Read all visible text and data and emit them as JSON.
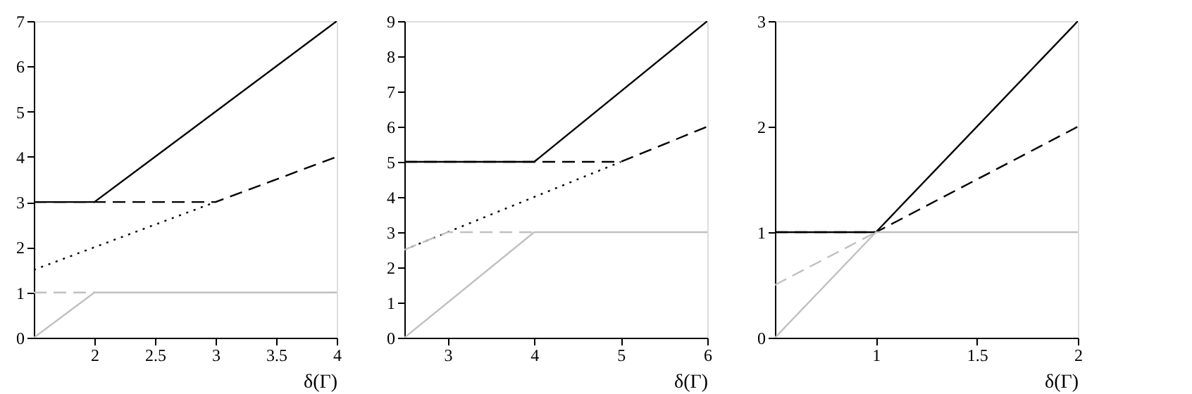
{
  "chart_data": [
    {
      "type": "line",
      "xlabel": "δ(Γ)",
      "xlim": [
        1.5,
        4
      ],
      "xticks": [
        2,
        2.5,
        3,
        3.5,
        4
      ],
      "ylim": [
        0,
        7
      ],
      "yticks": [
        0,
        1,
        2,
        3,
        4,
        5,
        6,
        7
      ],
      "grid": false,
      "marker": "none",
      "series": [
        {
          "color": "#000000",
          "line_style": "solid",
          "x": [
            1.5,
            2,
            4
          ],
          "values": [
            3,
            3,
            7
          ]
        },
        {
          "color": "#000000",
          "line_style": "dashed",
          "x": [
            1.5,
            3,
            4
          ],
          "values": [
            3,
            3,
            4
          ]
        },
        {
          "color": "#000000",
          "line_style": "dotted",
          "x": [
            1.5,
            3
          ],
          "values": [
            1.5,
            3
          ]
        },
        {
          "color": "#c0c0c0",
          "line_style": "dashed",
          "x": [
            1.5,
            2
          ],
          "values": [
            1,
            1
          ]
        },
        {
          "color": "#c0c0c0",
          "line_style": "solid",
          "x": [
            1.5,
            2,
            4
          ],
          "values": [
            0,
            1,
            1
          ]
        }
      ]
    },
    {
      "type": "line",
      "xlabel": "δ(Γ)",
      "xlim": [
        2.5,
        6
      ],
      "xticks": [
        3,
        4,
        5,
        6
      ],
      "ylim": [
        0,
        9
      ],
      "yticks": [
        0,
        1,
        2,
        3,
        4,
        5,
        6,
        7,
        8,
        9
      ],
      "grid": false,
      "marker": "none",
      "series": [
        {
          "color": "#000000",
          "line_style": "solid",
          "x": [
            2.5,
            4,
            6
          ],
          "values": [
            5,
            5,
            9
          ]
        },
        {
          "color": "#000000",
          "line_style": "dashed",
          "x": [
            2.5,
            5,
            6
          ],
          "values": [
            5,
            5,
            6
          ]
        },
        {
          "color": "#000000",
          "line_style": "dotted",
          "x": [
            2.5,
            5
          ],
          "values": [
            2.5,
            5
          ]
        },
        {
          "color": "#c0c0c0",
          "line_style": "dashed",
          "x": [
            2.5,
            3,
            4
          ],
          "values": [
            2.5,
            3,
            3
          ]
        },
        {
          "color": "#c0c0c0",
          "line_style": "solid",
          "x": [
            2.5,
            4,
            6
          ],
          "values": [
            0,
            3,
            3
          ]
        }
      ]
    },
    {
      "type": "line",
      "xlabel": "δ(Γ)",
      "xlim": [
        0.5,
        2
      ],
      "xticks": [
        1,
        1.5,
        2
      ],
      "ylim": [
        0,
        3
      ],
      "yticks": [
        0,
        1,
        2,
        3
      ],
      "grid": false,
      "marker": "none",
      "series": [
        {
          "color": "#000000",
          "line_style": "solid",
          "x": [
            0.5,
            1,
            2
          ],
          "values": [
            1,
            1,
            3
          ]
        },
        {
          "color": "#000000",
          "line_style": "dashed",
          "x": [
            0.5,
            1,
            2
          ],
          "values": [
            1,
            1,
            2
          ]
        },
        {
          "color": "#c0c0c0",
          "line_style": "dashed",
          "x": [
            0.5,
            1
          ],
          "values": [
            0.5,
            1
          ]
        },
        {
          "color": "#c0c0c0",
          "line_style": "solid",
          "x": [
            0.5,
            1,
            2
          ],
          "values": [
            0,
            1,
            1
          ]
        }
      ]
    }
  ]
}
